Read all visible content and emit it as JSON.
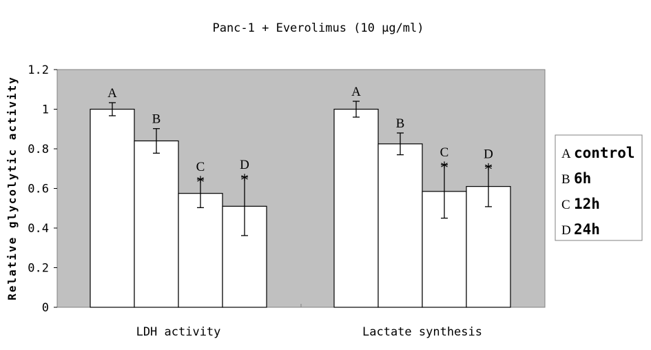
{
  "chart_data": {
    "type": "bar",
    "title": "Panc-1 + Everolimus (10 μg/ml)",
    "ylabel": "Relative glycolytic activity",
    "xlabel": "",
    "ylim": [
      0,
      1.2
    ],
    "yticks": [
      "0",
      "0.2",
      "0.4",
      "0.6",
      "0.8",
      "1",
      "1.2"
    ],
    "ytick_values": [
      0,
      0.2,
      0.4,
      0.6,
      0.8,
      1.0,
      1.2
    ],
    "categories": [
      "LDH activity",
      "Lactate synthesis"
    ],
    "series": [
      {
        "name": "control",
        "letter": "A",
        "values": [
          1.0,
          1.0
        ],
        "errors": [
          0.033,
          0.04
        ],
        "significant": [
          false,
          false
        ]
      },
      {
        "name": "6h",
        "letter": "B",
        "values": [
          0.84,
          0.825
        ],
        "errors": [
          0.062,
          0.055
        ],
        "significant": [
          false,
          false
        ]
      },
      {
        "name": "12h",
        "letter": "C",
        "values": [
          0.575,
          0.585
        ],
        "errors": [
          0.072,
          0.135
        ],
        "significant": [
          true,
          true
        ]
      },
      {
        "name": "24h",
        "letter": "D",
        "values": [
          0.51,
          0.61
        ],
        "errors": [
          0.148,
          0.102
        ],
        "significant": [
          true,
          true
        ]
      }
    ],
    "significance_marker": "*",
    "legend_position": "right",
    "plot_background": "#c0c0c0",
    "bar_color": "#ffffff",
    "grid": false
  }
}
